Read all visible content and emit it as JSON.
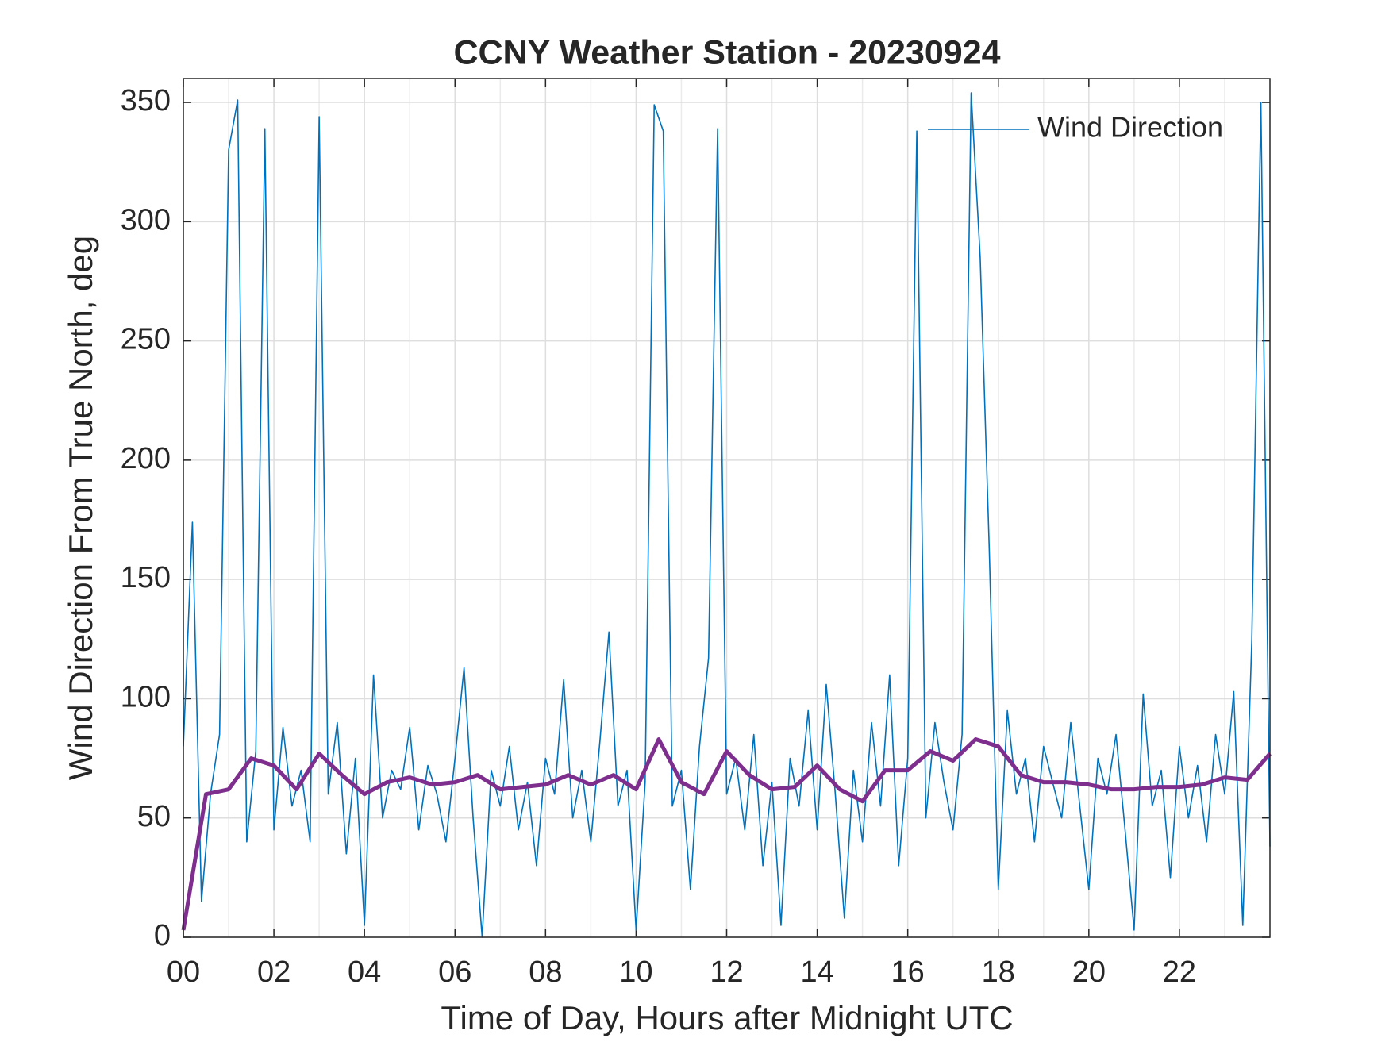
{
  "chart_data": {
    "type": "line",
    "title": "CCNY Weather Station - 20230924",
    "x_label": "Time of Day, Hours after Midnight UTC",
    "y_label": "Wind Direction From True North, deg",
    "xlim": [
      0,
      24
    ],
    "ylim": [
      0,
      360
    ],
    "xticks": [
      {
        "value": 0,
        "label": "00"
      },
      {
        "value": 2,
        "label": "02"
      },
      {
        "value": 4,
        "label": "04"
      },
      {
        "value": 6,
        "label": "06"
      },
      {
        "value": 8,
        "label": "08"
      },
      10,
      12,
      14,
      16,
      18,
      20,
      22
    ],
    "xminorticks": [
      1,
      3,
      5,
      7,
      9,
      11,
      13,
      15,
      17,
      19,
      21,
      23
    ],
    "yticks": [
      0,
      50,
      100,
      150,
      200,
      250,
      300,
      350
    ],
    "grid": true,
    "legend": "upper right",
    "series": [
      {
        "name": "Wind Direction",
        "color": "#0072bd",
        "x": [
          0,
          0.2,
          0.4,
          0.6,
          0.8,
          1,
          1.2,
          1.4,
          1.6,
          1.8,
          2,
          2.2,
          2.4,
          2.6,
          2.8,
          3,
          3.2,
          3.4,
          3.6,
          3.8,
          4,
          4.2,
          4.4,
          4.6,
          4.8,
          5,
          5.2,
          5.4,
          5.6,
          5.8,
          6,
          6.2,
          6.4,
          6.6,
          6.8,
          7,
          7.2,
          7.4,
          7.6,
          7.8,
          8,
          8.2,
          8.4,
          8.6,
          8.8,
          9,
          9.2,
          9.4,
          9.6,
          9.8,
          10,
          10.2,
          10.4,
          10.6,
          10.8,
          11,
          11.2,
          11.4,
          11.6,
          11.8,
          12,
          12.2,
          12.4,
          12.6,
          12.8,
          13,
          13.2,
          13.4,
          13.6,
          13.8,
          14,
          14.2,
          14.4,
          14.6,
          14.8,
          15,
          15.2,
          15.4,
          15.6,
          15.8,
          16,
          16.2,
          16.4,
          16.6,
          16.8,
          17,
          17.2,
          17.4,
          17.6,
          17.8,
          18,
          18.2,
          18.4,
          18.6,
          18.8,
          19,
          19.2,
          19.4,
          19.6,
          19.8,
          20,
          20.2,
          20.4,
          20.6,
          20.8,
          21,
          21.2,
          21.4,
          21.6,
          21.8,
          22,
          22.2,
          22.4,
          22.6,
          22.8,
          23,
          23.2,
          23.4,
          23.6,
          23.8,
          24
        ],
        "values": [
          80,
          174,
          15,
          60,
          85,
          330,
          351,
          40,
          78,
          339,
          45,
          88,
          55,
          70,
          40,
          344,
          60,
          90,
          35,
          75,
          5,
          110,
          50,
          70,
          62,
          88,
          45,
          72,
          60,
          40,
          75,
          113,
          50,
          0,
          70,
          55,
          80,
          45,
          65,
          30,
          75,
          60,
          108,
          50,
          70,
          40,
          82,
          128,
          55,
          70,
          3,
          65,
          349,
          338,
          55,
          70,
          20,
          80,
          117,
          339,
          60,
          75,
          45,
          85,
          30,
          65,
          5,
          75,
          55,
          95,
          45,
          106,
          60,
          8,
          70,
          40,
          90,
          55,
          110,
          30,
          75,
          338,
          50,
          90,
          65,
          45,
          85,
          354,
          285,
          163,
          20,
          95,
          60,
          75,
          40,
          80,
          65,
          50,
          90,
          55,
          20,
          75,
          60,
          85,
          45,
          3,
          102,
          55,
          70,
          25,
          80,
          50,
          72,
          40,
          85,
          60,
          103,
          5,
          125,
          350,
          38
        ]
      },
      {
        "color": "#7e2f8e",
        "x": [
          0,
          0.5,
          1,
          1.5,
          2,
          2.5,
          3,
          3.5,
          4,
          4.5,
          5,
          5.5,
          6,
          6.5,
          7,
          7.5,
          8,
          8.5,
          9,
          9.5,
          10,
          10.5,
          11,
          11.5,
          12,
          12.5,
          13,
          13.5,
          14,
          14.5,
          15,
          15.5,
          16,
          16.5,
          17,
          17.5,
          18,
          18.5,
          19,
          19.5,
          20,
          20.5,
          21,
          21.5,
          22,
          22.5,
          23,
          23.5,
          24
        ],
        "values": [
          3,
          60,
          62,
          75,
          72,
          62,
          77,
          68,
          60,
          65,
          67,
          64,
          65,
          68,
          62,
          63,
          64,
          68,
          64,
          68,
          62,
          83,
          65,
          60,
          78,
          68,
          62,
          63,
          72,
          62,
          57,
          70,
          70,
          78,
          74,
          83,
          80,
          68,
          65,
          65,
          64,
          62,
          62,
          63,
          63,
          64,
          67,
          66,
          77
        ]
      }
    ]
  }
}
